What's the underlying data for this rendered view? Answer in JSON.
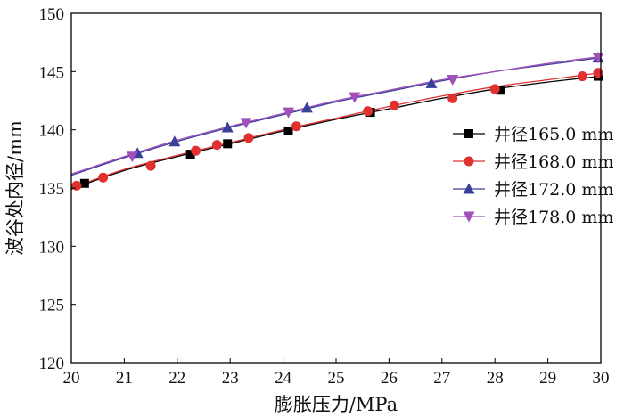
{
  "chart_data": {
    "type": "line",
    "xlabel": "膨胀压力/MPa",
    "ylabel": "波谷处内径/mm",
    "xlim": [
      20,
      30
    ],
    "ylim": [
      120,
      150
    ],
    "x_ticks": [
      "20",
      "21",
      "22",
      "23",
      "24",
      "25",
      "26",
      "27",
      "28",
      "29",
      "30"
    ],
    "y_ticks": [
      "120",
      "125",
      "130",
      "135",
      "140",
      "145",
      "150"
    ],
    "grid": false,
    "legend_position": "right",
    "series": [
      {
        "name": "井径165.0 mm",
        "color": "#000000",
        "marker": "square",
        "curve": [
          [
            20.0,
            134.9
          ],
          [
            21.0,
            136.5
          ],
          [
            22.0,
            137.7
          ],
          [
            23.0,
            138.8
          ],
          [
            24.0,
            139.9
          ],
          [
            25.0,
            140.9
          ],
          [
            26.0,
            141.8
          ],
          [
            27.0,
            142.7
          ],
          [
            28.0,
            143.5
          ],
          [
            29.0,
            144.1
          ],
          [
            30.0,
            144.6
          ]
        ],
        "markers": [
          [
            20.25,
            135.4
          ],
          [
            22.25,
            137.9
          ],
          [
            22.95,
            138.8
          ],
          [
            24.1,
            139.9
          ],
          [
            25.65,
            141.5
          ],
          [
            28.1,
            143.4
          ],
          [
            29.95,
            144.6
          ]
        ]
      },
      {
        "name": "井径168.0 mm",
        "color": "#e03030",
        "marker": "circle",
        "curve": [
          [
            20.0,
            135.0
          ],
          [
            21.0,
            136.6
          ],
          [
            22.0,
            137.8
          ],
          [
            23.0,
            138.9
          ],
          [
            24.0,
            140.0
          ],
          [
            25.0,
            141.0
          ],
          [
            26.0,
            142.0
          ],
          [
            27.0,
            142.9
          ],
          [
            28.0,
            143.7
          ],
          [
            29.0,
            144.3
          ],
          [
            30.0,
            144.9
          ]
        ],
        "markers": [
          [
            20.1,
            135.2
          ],
          [
            20.6,
            135.9
          ],
          [
            21.5,
            136.9
          ],
          [
            22.35,
            138.2
          ],
          [
            22.75,
            138.7
          ],
          [
            23.35,
            139.3
          ],
          [
            24.25,
            140.3
          ],
          [
            25.6,
            141.6
          ],
          [
            26.1,
            142.1
          ],
          [
            27.2,
            142.7
          ],
          [
            28.0,
            143.5
          ],
          [
            29.65,
            144.6
          ],
          [
            29.95,
            144.9
          ]
        ]
      },
      {
        "name": "井径172.0 mm",
        "color": "#3a3f9a",
        "marker": "triangle-up",
        "curve": [
          [
            20.0,
            136.1
          ],
          [
            21.0,
            137.6
          ],
          [
            22.0,
            139.0
          ],
          [
            23.0,
            140.2
          ],
          [
            24.0,
            141.3
          ],
          [
            25.0,
            142.4
          ],
          [
            26.0,
            143.3
          ],
          [
            27.0,
            144.2
          ],
          [
            28.0,
            145.0
          ],
          [
            29.0,
            145.6
          ],
          [
            30.0,
            146.2
          ]
        ],
        "markers": [
          [
            21.25,
            138.0
          ],
          [
            21.95,
            139.0
          ],
          [
            22.95,
            140.2
          ],
          [
            24.45,
            141.9
          ],
          [
            26.8,
            144.0
          ],
          [
            29.95,
            146.2
          ]
        ]
      },
      {
        "name": "井径178.0 mm",
        "color": "#a050b8",
        "marker": "triangle-down",
        "curve": [
          [
            20.0,
            136.2
          ],
          [
            21.0,
            137.7
          ],
          [
            22.0,
            139.1
          ],
          [
            23.0,
            140.3
          ],
          [
            24.0,
            141.4
          ],
          [
            25.0,
            142.5
          ],
          [
            26.0,
            143.4
          ],
          [
            27.0,
            144.3
          ],
          [
            28.0,
            145.0
          ],
          [
            29.0,
            145.7
          ],
          [
            30.0,
            146.3
          ]
        ],
        "markers": [
          [
            21.15,
            137.7
          ],
          [
            23.3,
            140.6
          ],
          [
            24.1,
            141.5
          ],
          [
            25.35,
            142.8
          ],
          [
            27.2,
            144.3
          ],
          [
            29.95,
            146.2
          ]
        ]
      }
    ]
  }
}
